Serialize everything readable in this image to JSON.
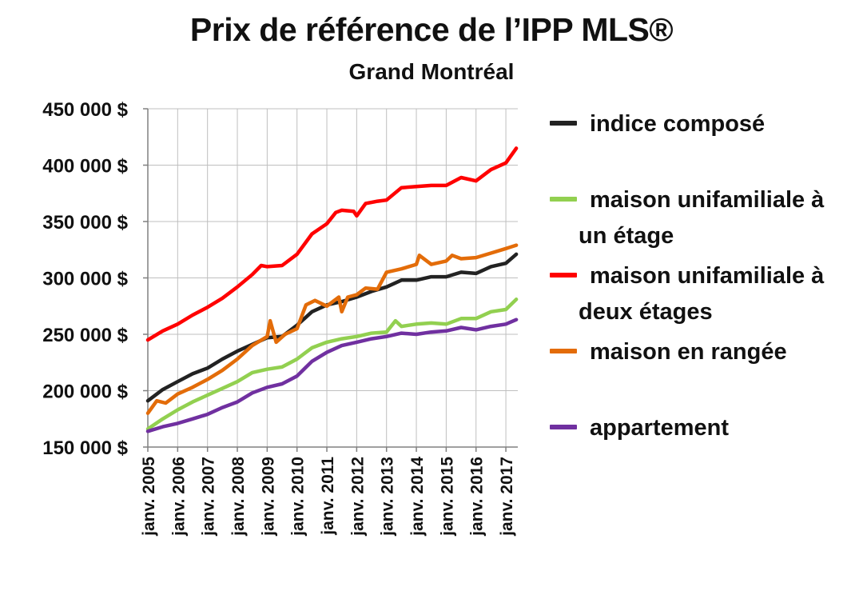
{
  "chart_data": {
    "type": "line",
    "title": "Prix de référence de l’IPP MLS®",
    "subtitle": "Grand Montréal",
    "xlabel": "",
    "ylabel": "",
    "ylim": [
      150000,
      450000
    ],
    "yticks": [
      150000,
      200000,
      250000,
      300000,
      350000,
      400000,
      450000
    ],
    "ytick_labels": [
      "150 000 $",
      "200 000 $",
      "250 000 $",
      "300 000 $",
      "350 000 $",
      "400 000 $",
      "450 000 $"
    ],
    "xlim": [
      2005,
      2017.4
    ],
    "xticks": [
      2005,
      2006,
      2007,
      2008,
      2009,
      2010,
      2011,
      2012,
      2013,
      2014,
      2015,
      2016,
      2017
    ],
    "xtick_labels": [
      "janv. 2005",
      "janv. 2006",
      "janv. 2007",
      "janv. 2008",
      "janv. 2009",
      "janv. 2010",
      "janv. 2011",
      "janv. 2012",
      "janv. 2013",
      "janv. 2014",
      "janv. 2015",
      "janv. 2016",
      "janv. 2017"
    ],
    "grid": true,
    "legend_position": "right",
    "series": [
      {
        "name": "indice composé",
        "color": "#222222",
        "points": [
          [
            2005.0,
            191000
          ],
          [
            2005.5,
            201000
          ],
          [
            2006.0,
            208000
          ],
          [
            2006.5,
            215000
          ],
          [
            2007.0,
            220000
          ],
          [
            2007.5,
            228000
          ],
          [
            2008.0,
            235000
          ],
          [
            2008.5,
            241000
          ],
          [
            2009.0,
            247000
          ],
          [
            2009.5,
            248000
          ],
          [
            2010.0,
            258000
          ],
          [
            2010.5,
            270000
          ],
          [
            2011.0,
            276000
          ],
          [
            2011.5,
            279000
          ],
          [
            2012.0,
            283000
          ],
          [
            2012.5,
            288000
          ],
          [
            2013.0,
            292000
          ],
          [
            2013.5,
            298000
          ],
          [
            2014.0,
            298000
          ],
          [
            2014.5,
            301000
          ],
          [
            2015.0,
            301000
          ],
          [
            2015.5,
            305000
          ],
          [
            2016.0,
            304000
          ],
          [
            2016.5,
            310000
          ],
          [
            2017.0,
            313000
          ],
          [
            2017.35,
            321000
          ]
        ]
      },
      {
        "name": "maison unifamiliale à un étage",
        "color": "#92d050",
        "points": [
          [
            2005.0,
            166000
          ],
          [
            2005.5,
            175000
          ],
          [
            2006.0,
            183000
          ],
          [
            2006.5,
            190000
          ],
          [
            2007.0,
            196000
          ],
          [
            2007.5,
            202000
          ],
          [
            2008.0,
            208000
          ],
          [
            2008.5,
            216000
          ],
          [
            2009.0,
            219000
          ],
          [
            2009.5,
            221000
          ],
          [
            2010.0,
            228000
          ],
          [
            2010.5,
            238000
          ],
          [
            2011.0,
            243000
          ],
          [
            2011.5,
            246000
          ],
          [
            2012.0,
            248000
          ],
          [
            2012.5,
            251000
          ],
          [
            2013.0,
            252000
          ],
          [
            2013.3,
            262000
          ],
          [
            2013.5,
            257000
          ],
          [
            2014.0,
            259000
          ],
          [
            2014.5,
            260000
          ],
          [
            2015.0,
            259000
          ],
          [
            2015.5,
            264000
          ],
          [
            2016.0,
            264000
          ],
          [
            2016.5,
            270000
          ],
          [
            2017.0,
            272000
          ],
          [
            2017.35,
            281000
          ]
        ]
      },
      {
        "name": "maison unifamiliale à deux étages",
        "color": "#ff0000",
        "points": [
          [
            2005.0,
            245000
          ],
          [
            2005.5,
            253000
          ],
          [
            2006.0,
            259000
          ],
          [
            2006.5,
            267000
          ],
          [
            2007.0,
            274000
          ],
          [
            2007.5,
            282000
          ],
          [
            2008.0,
            292000
          ],
          [
            2008.5,
            303000
          ],
          [
            2008.8,
            311000
          ],
          [
            2009.0,
            310000
          ],
          [
            2009.5,
            311000
          ],
          [
            2010.0,
            321000
          ],
          [
            2010.5,
            339000
          ],
          [
            2011.0,
            348000
          ],
          [
            2011.3,
            358000
          ],
          [
            2011.5,
            360000
          ],
          [
            2011.9,
            359000
          ],
          [
            2012.0,
            355000
          ],
          [
            2012.3,
            366000
          ],
          [
            2012.7,
            368000
          ],
          [
            2013.0,
            369000
          ],
          [
            2013.5,
            380000
          ],
          [
            2014.0,
            381000
          ],
          [
            2014.5,
            382000
          ],
          [
            2015.0,
            382000
          ],
          [
            2015.5,
            389000
          ],
          [
            2016.0,
            386000
          ],
          [
            2016.5,
            396000
          ],
          [
            2017.0,
            402000
          ],
          [
            2017.35,
            415000
          ]
        ]
      },
      {
        "name": "maison en rangée",
        "color": "#e36c09",
        "points": [
          [
            2005.0,
            180000
          ],
          [
            2005.3,
            191000
          ],
          [
            2005.6,
            189000
          ],
          [
            2006.0,
            197000
          ],
          [
            2006.5,
            203000
          ],
          [
            2007.0,
            210000
          ],
          [
            2007.5,
            218000
          ],
          [
            2008.0,
            228000
          ],
          [
            2008.5,
            240000
          ],
          [
            2009.0,
            248000
          ],
          [
            2009.1,
            262000
          ],
          [
            2009.3,
            243000
          ],
          [
            2009.6,
            250000
          ],
          [
            2010.0,
            255000
          ],
          [
            2010.3,
            276000
          ],
          [
            2010.6,
            280000
          ],
          [
            2011.0,
            275000
          ],
          [
            2011.4,
            283000
          ],
          [
            2011.5,
            270000
          ],
          [
            2011.7,
            283000
          ],
          [
            2012.0,
            285000
          ],
          [
            2012.3,
            291000
          ],
          [
            2012.7,
            290000
          ],
          [
            2013.0,
            305000
          ],
          [
            2013.5,
            308000
          ],
          [
            2014.0,
            312000
          ],
          [
            2014.1,
            320000
          ],
          [
            2014.5,
            312000
          ],
          [
            2015.0,
            315000
          ],
          [
            2015.2,
            320000
          ],
          [
            2015.5,
            317000
          ],
          [
            2016.0,
            318000
          ],
          [
            2016.5,
            322000
          ],
          [
            2017.0,
            326000
          ],
          [
            2017.35,
            329000
          ]
        ]
      },
      {
        "name": "appartement",
        "color": "#7030a0",
        "points": [
          [
            2005.0,
            164000
          ],
          [
            2005.5,
            168000
          ],
          [
            2006.0,
            171000
          ],
          [
            2006.5,
            175000
          ],
          [
            2007.0,
            179000
          ],
          [
            2007.5,
            185000
          ],
          [
            2008.0,
            190000
          ],
          [
            2008.5,
            198000
          ],
          [
            2009.0,
            203000
          ],
          [
            2009.5,
            206000
          ],
          [
            2010.0,
            213000
          ],
          [
            2010.5,
            226000
          ],
          [
            2011.0,
            234000
          ],
          [
            2011.5,
            240000
          ],
          [
            2012.0,
            243000
          ],
          [
            2012.5,
            246000
          ],
          [
            2013.0,
            248000
          ],
          [
            2013.5,
            251000
          ],
          [
            2014.0,
            250000
          ],
          [
            2014.5,
            252000
          ],
          [
            2015.0,
            253000
          ],
          [
            2015.5,
            256000
          ],
          [
            2016.0,
            254000
          ],
          [
            2016.5,
            257000
          ],
          [
            2017.0,
            259000
          ],
          [
            2017.35,
            263000
          ]
        ]
      }
    ]
  },
  "legend": {
    "items": [
      {
        "label": "indice composé",
        "color": "#222222"
      },
      {
        "label": "maison unifamiliale à\nun étage",
        "color": "#92d050"
      },
      {
        "label": "maison unifamiliale à\ndeux étages",
        "color": "#ff0000"
      },
      {
        "label": "maison en rangée",
        "color": "#e36c09"
      },
      {
        "label": "appartement",
        "color": "#7030a0"
      }
    ]
  }
}
